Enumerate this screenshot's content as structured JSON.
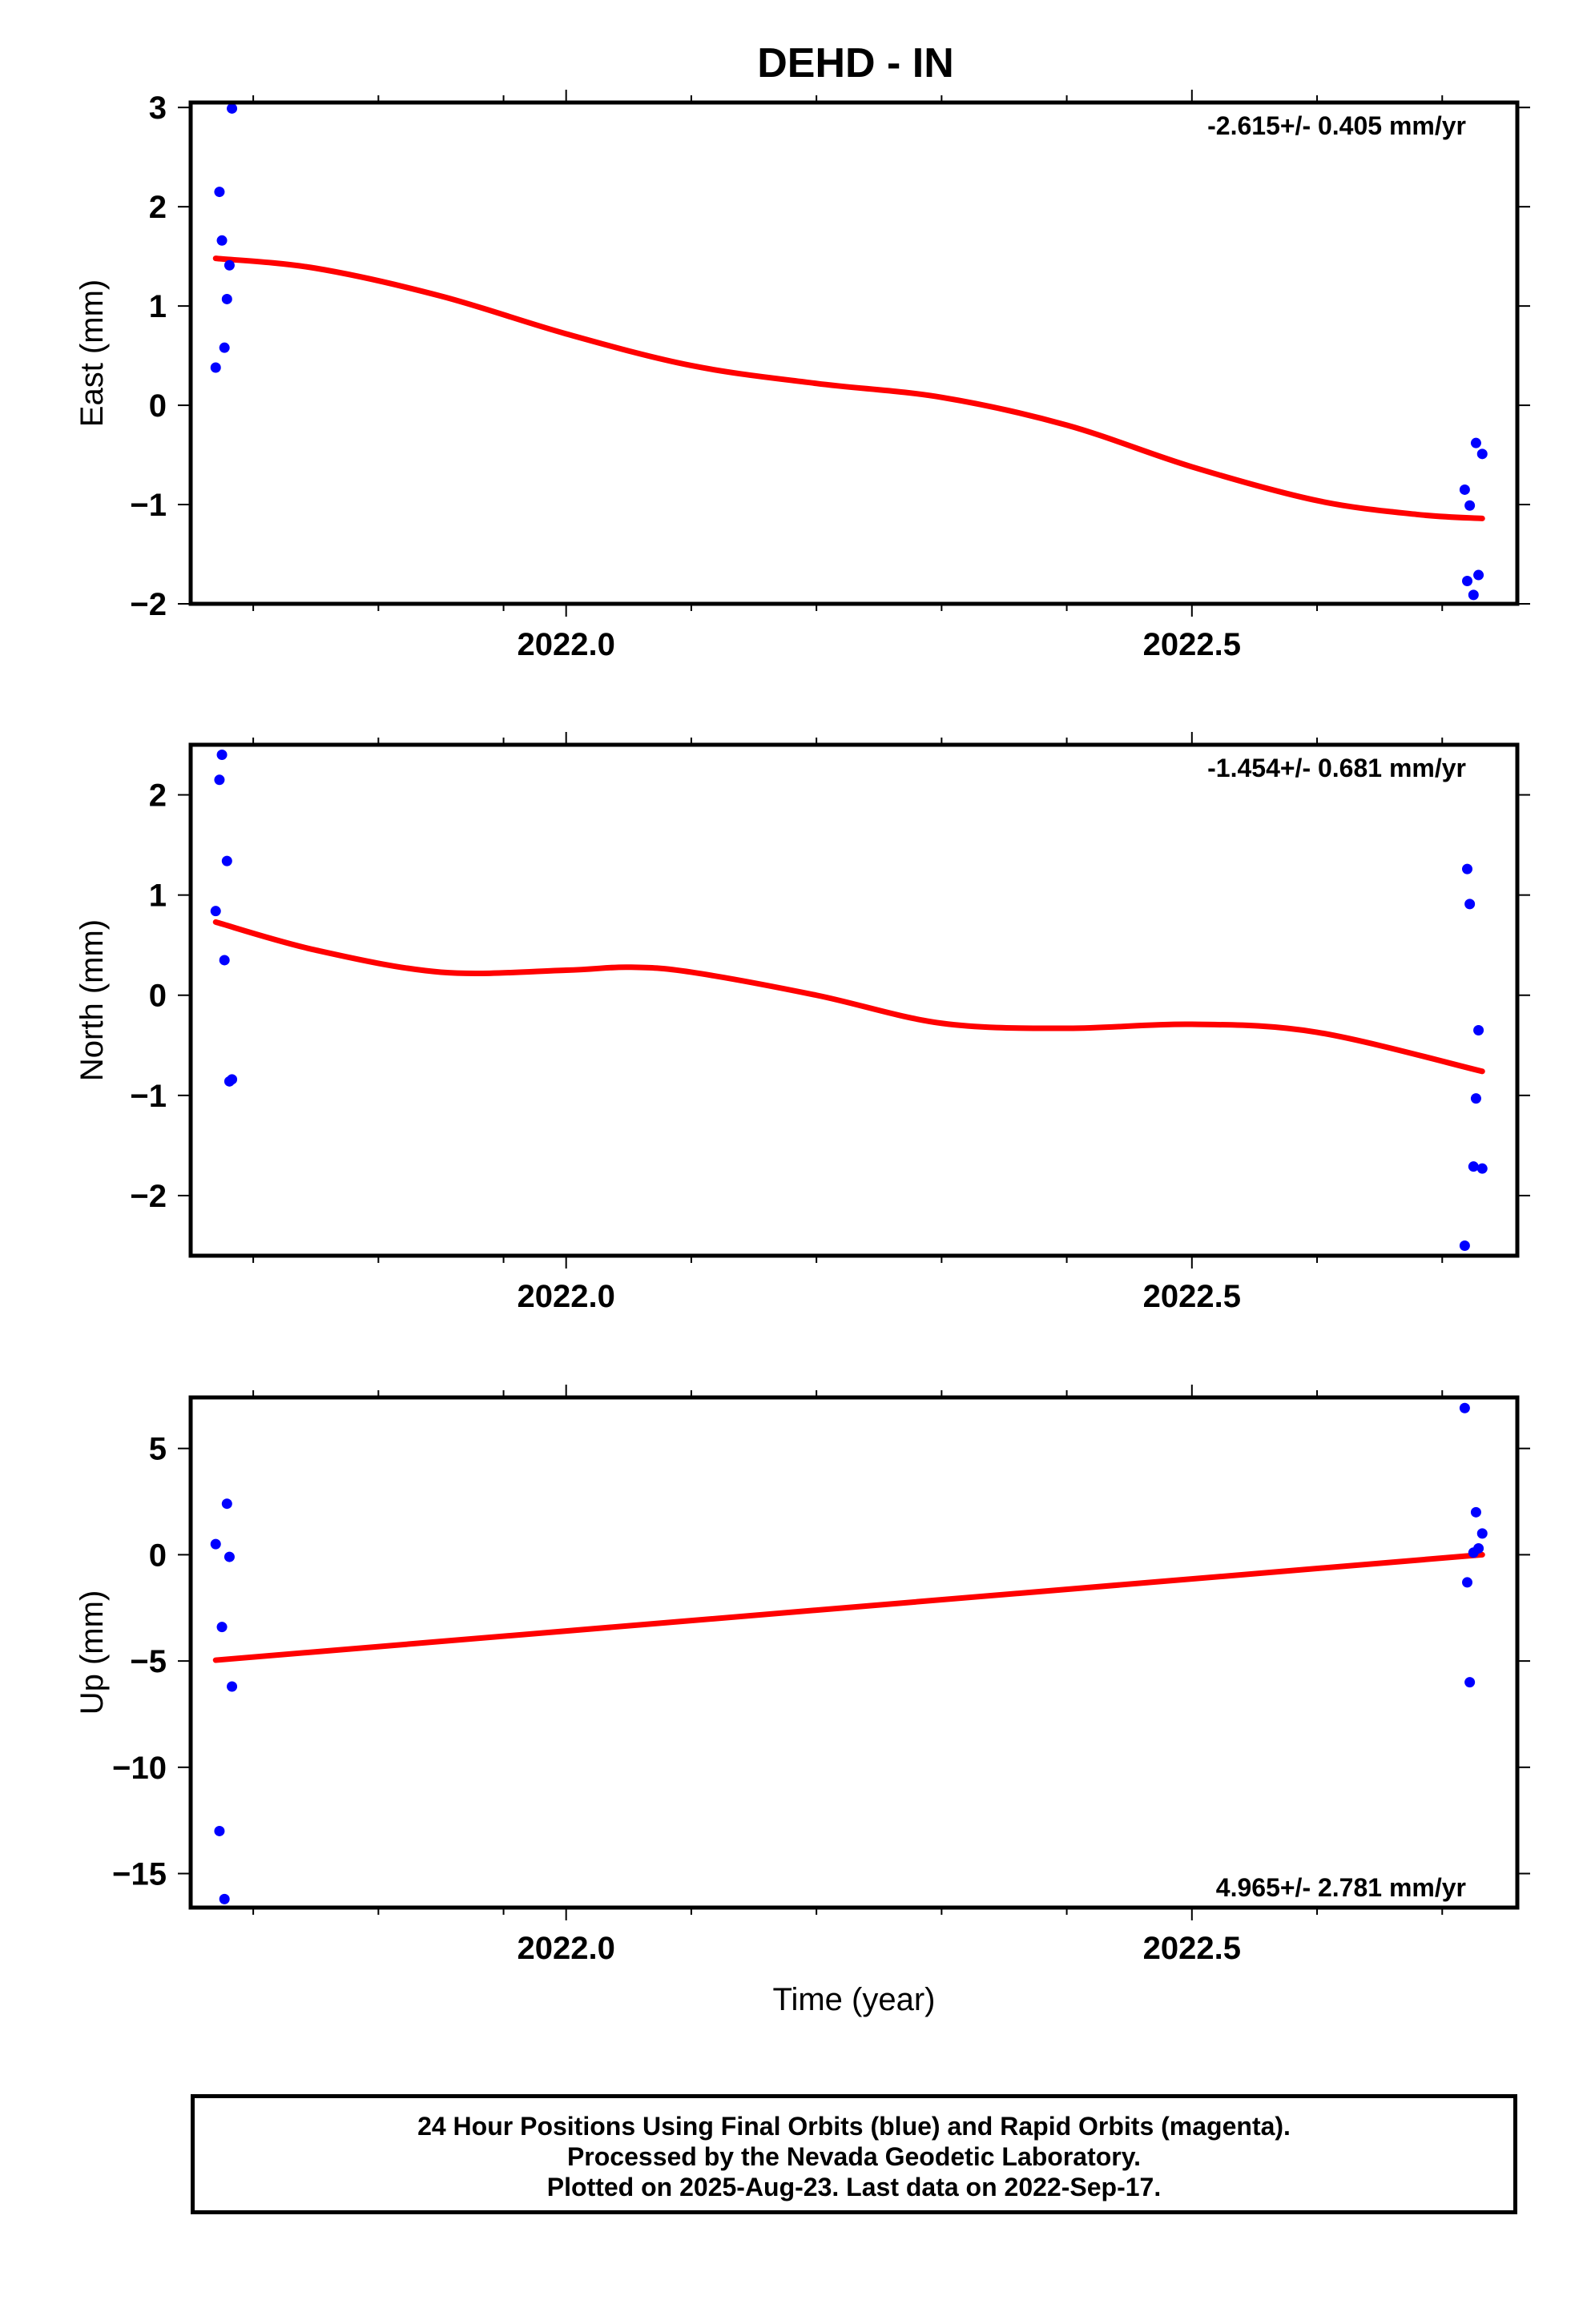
{
  "title": "DEHD - IN",
  "x_axis_label": "Time (year)",
  "footer": {
    "line1": "24 Hour Positions Using Final Orbits (blue) and Rapid Orbits (magenta).",
    "line2": "Processed by the Nevada Geodetic Laboratory.",
    "line3": "Plotted on 2025-Aug-23. Last data on 2022-Sep-17."
  },
  "colors": {
    "points": "#0000ff",
    "fit": "#ff0000",
    "axes": "#000000"
  },
  "chart_data": [
    {
      "type": "scatter",
      "ylabel": "East (mm)",
      "rate_label": "-2.615+/- 0.405 mm/yr",
      "xlim": [
        2021.7,
        2022.76
      ],
      "ylim": [
        -2,
        3.05
      ],
      "x_ticks": [
        2022.0,
        2022.5
      ],
      "x_tick_labels": [
        "2022.0",
        "2022.5"
      ],
      "y_ticks": [
        -2,
        -1,
        0,
        1,
        2,
        3
      ],
      "y_tick_labels": [
        "−2",
        "−1",
        "0",
        "1",
        "2",
        "3"
      ],
      "points": [
        {
          "x": 2021.72,
          "y": 0.38
        },
        {
          "x": 2021.723,
          "y": 2.15
        },
        {
          "x": 2021.725,
          "y": 1.66
        },
        {
          "x": 2021.727,
          "y": 0.58
        },
        {
          "x": 2021.729,
          "y": 1.07
        },
        {
          "x": 2021.731,
          "y": 1.41
        },
        {
          "x": 2021.733,
          "y": 2.99
        },
        {
          "x": 2022.718,
          "y": -0.85
        },
        {
          "x": 2022.72,
          "y": -1.77
        },
        {
          "x": 2022.722,
          "y": -1.01
        },
        {
          "x": 2022.725,
          "y": -1.91
        },
        {
          "x": 2022.727,
          "y": -0.38
        },
        {
          "x": 2022.729,
          "y": -1.71
        },
        {
          "x": 2022.732,
          "y": -0.49
        }
      ],
      "fit": [
        {
          "x": 2021.72,
          "y": 1.48
        },
        {
          "x": 2021.8,
          "y": 1.38
        },
        {
          "x": 2021.9,
          "y": 1.1
        },
        {
          "x": 2022.0,
          "y": 0.72
        },
        {
          "x": 2022.1,
          "y": 0.4
        },
        {
          "x": 2022.2,
          "y": 0.22
        },
        {
          "x": 2022.3,
          "y": 0.08
        },
        {
          "x": 2022.4,
          "y": -0.2
        },
        {
          "x": 2022.5,
          "y": -0.62
        },
        {
          "x": 2022.6,
          "y": -0.96
        },
        {
          "x": 2022.68,
          "y": -1.1
        },
        {
          "x": 2022.732,
          "y": -1.14
        }
      ]
    },
    {
      "type": "scatter",
      "ylabel": "North (mm)",
      "rate_label": "-1.454+/- 0.681 mm/yr",
      "xlim": [
        2021.7,
        2022.76
      ],
      "ylim": [
        -2.6,
        2.5
      ],
      "x_ticks": [
        2022.0,
        2022.5
      ],
      "x_tick_labels": [
        "2022.0",
        "2022.5"
      ],
      "y_ticks": [
        -2,
        -1,
        0,
        1,
        2
      ],
      "y_tick_labels": [
        "−2",
        "−1",
        "0",
        "1",
        "2"
      ],
      "points": [
        {
          "x": 2021.72,
          "y": 0.84
        },
        {
          "x": 2021.723,
          "y": 2.15
        },
        {
          "x": 2021.725,
          "y": 2.4
        },
        {
          "x": 2021.727,
          "y": 0.35
        },
        {
          "x": 2021.729,
          "y": 1.34
        },
        {
          "x": 2021.731,
          "y": -0.86
        },
        {
          "x": 2021.733,
          "y": -0.84
        },
        {
          "x": 2022.718,
          "y": -2.5
        },
        {
          "x": 2022.72,
          "y": 1.26
        },
        {
          "x": 2022.722,
          "y": 0.91
        },
        {
          "x": 2022.725,
          "y": -1.71
        },
        {
          "x": 2022.727,
          "y": -1.03
        },
        {
          "x": 2022.729,
          "y": -0.35
        },
        {
          "x": 2022.732,
          "y": -1.73
        }
      ],
      "fit": [
        {
          "x": 2021.72,
          "y": 0.73
        },
        {
          "x": 2021.8,
          "y": 0.45
        },
        {
          "x": 2021.9,
          "y": 0.23
        },
        {
          "x": 2022.0,
          "y": 0.25
        },
        {
          "x": 2022.05,
          "y": 0.28
        },
        {
          "x": 2022.1,
          "y": 0.23
        },
        {
          "x": 2022.2,
          "y": 0.0
        },
        {
          "x": 2022.3,
          "y": -0.28
        },
        {
          "x": 2022.4,
          "y": -0.33
        },
        {
          "x": 2022.5,
          "y": -0.29
        },
        {
          "x": 2022.6,
          "y": -0.37
        },
        {
          "x": 2022.732,
          "y": -0.76
        }
      ]
    },
    {
      "type": "scatter",
      "ylabel": "Up (mm)",
      "rate_label": "4.965+/- 2.781 mm/yr",
      "xlim": [
        2021.7,
        2022.76
      ],
      "ylim": [
        -16.6,
        7.4
      ],
      "x_ticks": [
        2022.0,
        2022.5
      ],
      "x_tick_labels": [
        "2022.0",
        "2022.5"
      ],
      "y_ticks": [
        -15,
        -10,
        -5,
        0,
        5
      ],
      "y_tick_labels": [
        "−15",
        "−10",
        "−5",
        "0",
        "5"
      ],
      "points": [
        {
          "x": 2021.72,
          "y": 0.5
        },
        {
          "x": 2021.723,
          "y": -13.0
        },
        {
          "x": 2021.725,
          "y": -3.4
        },
        {
          "x": 2021.727,
          "y": -16.2
        },
        {
          "x": 2021.729,
          "y": 2.4
        },
        {
          "x": 2021.731,
          "y": -0.1
        },
        {
          "x": 2021.733,
          "y": -6.2
        },
        {
          "x": 2022.718,
          "y": 6.9
        },
        {
          "x": 2022.72,
          "y": -1.3
        },
        {
          "x": 2022.722,
          "y": -6.0
        },
        {
          "x": 2022.725,
          "y": 0.1
        },
        {
          "x": 2022.727,
          "y": 2.0
        },
        {
          "x": 2022.729,
          "y": 0.3
        },
        {
          "x": 2022.732,
          "y": 1.0
        }
      ],
      "fit": [
        {
          "x": 2021.72,
          "y": -4.96
        },
        {
          "x": 2022.732,
          "y": 0.0
        }
      ]
    }
  ]
}
